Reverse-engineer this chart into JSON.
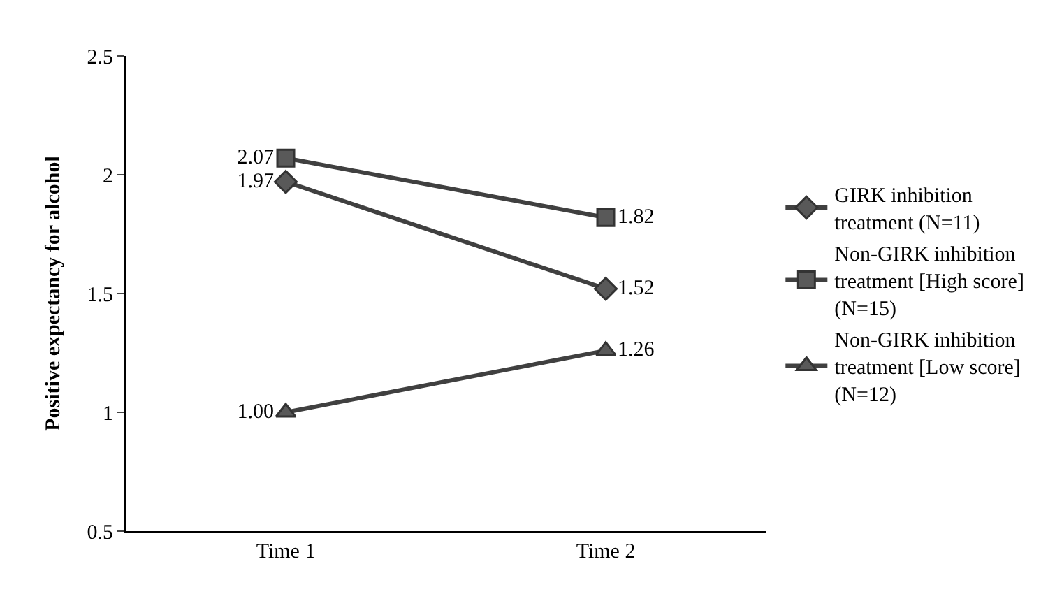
{
  "chart_data": {
    "type": "line",
    "ylabel": "Positive expectancy for alcohol",
    "categories": [
      "Time 1",
      "Time 2"
    ],
    "ylim": [
      0.5,
      2.5
    ],
    "yticks": [
      0.5,
      1,
      1.5,
      2,
      2.5
    ],
    "legend": "right",
    "series": [
      {
        "name": "GIRK inhibition treatment (N=11)",
        "color": "#595959",
        "marker": "diamond",
        "values": [
          1.97,
          1.52
        ],
        "value_labels": [
          "1.97",
          "1.52"
        ]
      },
      {
        "name": "Non-GIRK inhibition treatment [High score] (N=15)",
        "color": "#595959",
        "marker": "square",
        "values": [
          2.07,
          1.82
        ],
        "value_labels": [
          "2.07",
          "1.82"
        ]
      },
      {
        "name": "Non-GIRK inhibition treatment [Low score] (N=12)",
        "color": "#595959",
        "marker": "triangle",
        "values": [
          1.0,
          1.26
        ],
        "value_labels": [
          "1.00",
          "1.26"
        ]
      }
    ]
  }
}
